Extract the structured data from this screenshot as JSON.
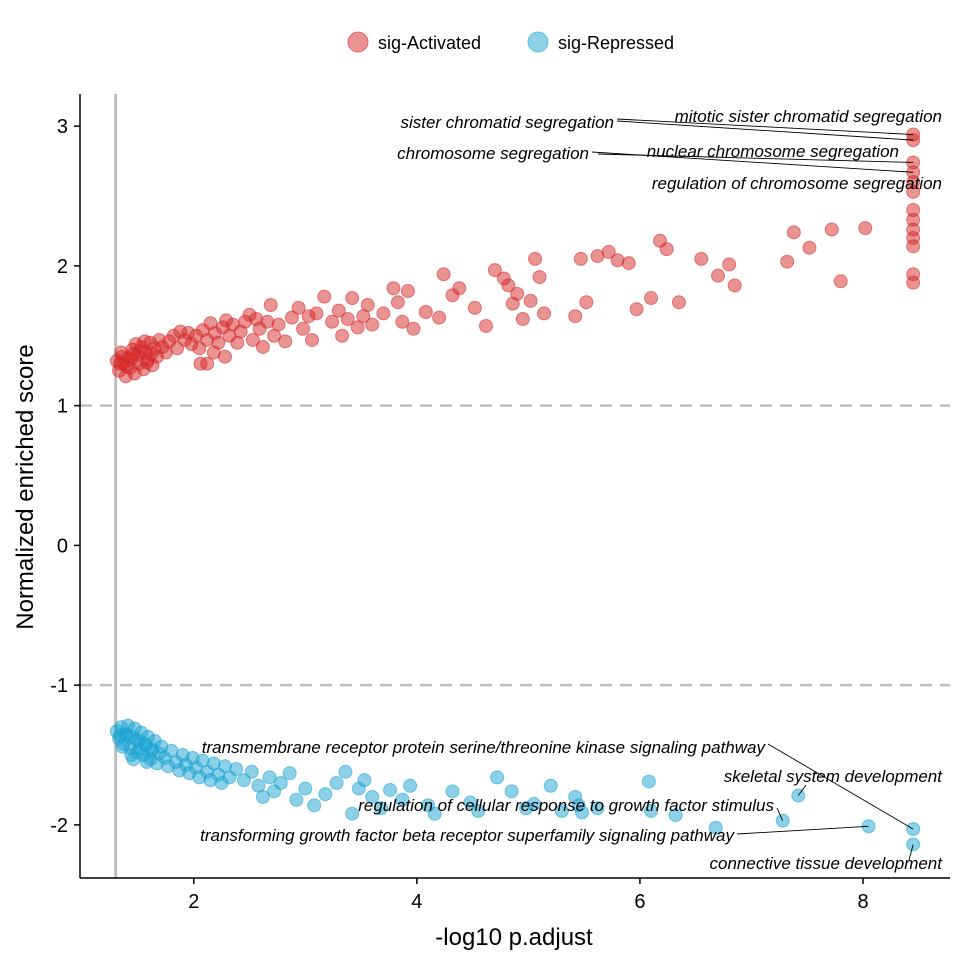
{
  "chart_data": {
    "type": "scatter",
    "title": "",
    "xlabel": "-log10 p.adjust",
    "ylabel": "Normalized enriched score",
    "xlim": [
      0.98,
      8.78
    ],
    "ylim": [
      -2.38,
      3.23
    ],
    "xticks": [
      2,
      4,
      6,
      8
    ],
    "yticks": [
      -2,
      -1,
      0,
      1,
      2,
      3
    ],
    "grid": false,
    "legend_position": "top",
    "reference_lines": {
      "vertical_solid_x": 1.3,
      "horizontal_dashed_y": [
        1,
        -1
      ]
    },
    "colors": {
      "sig-Activated": "#d62728",
      "sig-Repressed": "#1aa3d1",
      "reference": "#bfbfbf"
    },
    "series": [
      {
        "name": "sig-Activated",
        "points": [
          [
            1.31,
            1.32
          ],
          [
            1.33,
            1.25
          ],
          [
            1.35,
            1.38
          ],
          [
            1.37,
            1.3
          ],
          [
            1.39,
            1.21
          ],
          [
            1.41,
            1.34
          ],
          [
            1.43,
            1.27
          ],
          [
            1.45,
            1.4
          ],
          [
            1.47,
            1.23
          ],
          [
            1.49,
            1.36
          ],
          [
            1.51,
            1.3
          ],
          [
            1.53,
            1.42
          ],
          [
            1.55,
            1.26
          ],
          [
            1.57,
            1.38
          ],
          [
            1.59,
            1.33
          ],
          [
            1.61,
            1.45
          ],
          [
            1.63,
            1.29
          ],
          [
            1.65,
            1.41
          ],
          [
            1.67,
            1.35
          ],
          [
            1.69,
            1.47
          ],
          [
            1.36,
            1.35
          ],
          [
            1.44,
            1.33
          ],
          [
            1.52,
            1.39
          ],
          [
            1.58,
            1.31
          ],
          [
            1.48,
            1.44
          ],
          [
            1.4,
            1.28
          ],
          [
            1.56,
            1.46
          ],
          [
            1.62,
            1.37
          ],
          [
            1.34,
            1.3
          ],
          [
            1.46,
            1.37
          ],
          [
            1.72,
            1.42
          ],
          [
            1.75,
            1.38
          ],
          [
            1.78,
            1.46
          ],
          [
            1.82,
            1.5
          ],
          [
            1.85,
            1.41
          ],
          [
            1.88,
            1.53
          ],
          [
            1.92,
            1.47
          ],
          [
            1.95,
            1.52
          ],
          [
            1.98,
            1.44
          ],
          [
            2.02,
            1.5
          ],
          [
            2.05,
            1.41
          ],
          [
            2.08,
            1.54
          ],
          [
            2.12,
            1.47
          ],
          [
            2.15,
            1.59
          ],
          [
            2.19,
            1.52
          ],
          [
            2.22,
            1.45
          ],
          [
            2.26,
            1.56
          ],
          [
            2.29,
            1.61
          ],
          [
            2.32,
            1.5
          ],
          [
            2.35,
            1.58
          ],
          [
            2.06,
            1.3
          ],
          [
            2.12,
            1.3
          ],
          [
            2.18,
            1.38
          ],
          [
            2.28,
            1.35
          ],
          [
            2.39,
            1.45
          ],
          [
            2.42,
            1.53
          ],
          [
            2.46,
            1.6
          ],
          [
            2.5,
            1.65
          ],
          [
            2.53,
            1.47
          ],
          [
            2.56,
            1.62
          ],
          [
            2.59,
            1.55
          ],
          [
            2.62,
            1.42
          ],
          [
            2.66,
            1.6
          ],
          [
            2.69,
            1.72
          ],
          [
            2.72,
            1.5
          ],
          [
            2.76,
            1.58
          ],
          [
            2.82,
            1.46
          ],
          [
            2.88,
            1.63
          ],
          [
            2.94,
            1.7
          ],
          [
            2.98,
            1.55
          ],
          [
            3.03,
            1.64
          ],
          [
            3.06,
            1.47
          ],
          [
            3.1,
            1.66
          ],
          [
            3.17,
            1.78
          ],
          [
            3.24,
            1.6
          ],
          [
            3.3,
            1.68
          ],
          [
            3.33,
            1.5
          ],
          [
            3.38,
            1.62
          ],
          [
            3.42,
            1.77
          ],
          [
            3.47,
            1.56
          ],
          [
            3.52,
            1.64
          ],
          [
            3.56,
            1.72
          ],
          [
            3.6,
            1.58
          ],
          [
            3.7,
            1.66
          ],
          [
            3.79,
            1.84
          ],
          [
            3.83,
            1.74
          ],
          [
            3.87,
            1.6
          ],
          [
            3.92,
            1.82
          ],
          [
            3.97,
            1.55
          ],
          [
            4.08,
            1.67
          ],
          [
            4.2,
            1.63
          ],
          [
            4.24,
            1.94
          ],
          [
            4.32,
            1.79
          ],
          [
            4.38,
            1.84
          ],
          [
            4.52,
            1.7
          ],
          [
            4.62,
            1.57
          ],
          [
            4.7,
            1.97
          ],
          [
            4.78,
            1.91
          ],
          [
            4.82,
            1.86
          ],
          [
            4.86,
            1.73
          ],
          [
            4.9,
            1.8
          ],
          [
            4.95,
            1.62
          ],
          [
            5.02,
            1.75
          ],
          [
            5.06,
            2.05
          ],
          [
            5.1,
            1.92
          ],
          [
            5.14,
            1.66
          ],
          [
            5.42,
            1.64
          ],
          [
            5.47,
            2.05
          ],
          [
            5.52,
            1.74
          ],
          [
            5.62,
            2.07
          ],
          [
            5.72,
            2.1
          ],
          [
            5.8,
            2.04
          ],
          [
            5.9,
            2.02
          ],
          [
            5.97,
            1.69
          ],
          [
            6.1,
            1.77
          ],
          [
            6.18,
            2.18
          ],
          [
            6.24,
            2.12
          ],
          [
            6.35,
            1.74
          ],
          [
            6.55,
            2.05
          ],
          [
            6.7,
            1.93
          ],
          [
            6.8,
            2.01
          ],
          [
            6.85,
            1.86
          ],
          [
            7.32,
            2.03
          ],
          [
            7.38,
            2.24
          ],
          [
            7.52,
            2.13
          ],
          [
            7.72,
            2.26
          ],
          [
            7.8,
            1.89
          ],
          [
            8.02,
            2.27
          ],
          [
            8.45,
            2.94
          ],
          [
            8.45,
            2.9
          ],
          [
            8.45,
            2.74
          ],
          [
            8.45,
            2.67
          ],
          [
            8.45,
            2.6
          ],
          [
            8.45,
            2.53
          ],
          [
            8.45,
            2.4
          ],
          [
            8.45,
            2.33
          ],
          [
            8.45,
            2.26
          ],
          [
            8.45,
            2.2
          ],
          [
            8.45,
            2.14
          ],
          [
            8.45,
            1.94
          ],
          [
            8.45,
            1.88
          ]
        ]
      },
      {
        "name": "sig-Repressed",
        "points": [
          [
            1.31,
            -1.33
          ],
          [
            1.33,
            -1.38
          ],
          [
            1.35,
            -1.3
          ],
          [
            1.37,
            -1.42
          ],
          [
            1.39,
            -1.35
          ],
          [
            1.41,
            -1.29
          ],
          [
            1.43,
            -1.45
          ],
          [
            1.45,
            -1.37
          ],
          [
            1.47,
            -1.31
          ],
          [
            1.49,
            -1.48
          ],
          [
            1.51,
            -1.4
          ],
          [
            1.53,
            -1.34
          ],
          [
            1.55,
            -1.5
          ],
          [
            1.57,
            -1.43
          ],
          [
            1.59,
            -1.37
          ],
          [
            1.61,
            -1.53
          ],
          [
            1.63,
            -1.46
          ],
          [
            1.65,
            -1.4
          ],
          [
            1.67,
            -1.56
          ],
          [
            1.69,
            -1.49
          ],
          [
            1.36,
            -1.44
          ],
          [
            1.44,
            -1.5
          ],
          [
            1.52,
            -1.46
          ],
          [
            1.58,
            -1.55
          ],
          [
            1.48,
            -1.39
          ],
          [
            1.4,
            -1.36
          ],
          [
            1.56,
            -1.42
          ],
          [
            1.62,
            -1.47
          ],
          [
            1.34,
            -1.36
          ],
          [
            1.46,
            -1.53
          ],
          [
            1.71,
            -1.44
          ],
          [
            1.74,
            -1.52
          ],
          [
            1.77,
            -1.58
          ],
          [
            1.8,
            -1.47
          ],
          [
            1.84,
            -1.55
          ],
          [
            1.87,
            -1.61
          ],
          [
            1.9,
            -1.5
          ],
          [
            1.93,
            -1.57
          ],
          [
            1.96,
            -1.63
          ],
          [
            1.99,
            -1.52
          ],
          [
            2.02,
            -1.59
          ],
          [
            2.05,
            -1.66
          ],
          [
            2.08,
            -1.54
          ],
          [
            2.12,
            -1.62
          ],
          [
            2.15,
            -1.68
          ],
          [
            2.18,
            -1.56
          ],
          [
            2.22,
            -1.64
          ],
          [
            2.25,
            -1.7
          ],
          [
            2.28,
            -1.58
          ],
          [
            2.32,
            -1.66
          ],
          [
            2.38,
            -1.6
          ],
          [
            2.45,
            -1.68
          ],
          [
            2.52,
            -1.62
          ],
          [
            2.58,
            -1.72
          ],
          [
            2.62,
            -1.8
          ],
          [
            2.68,
            -1.66
          ],
          [
            2.72,
            -1.76
          ],
          [
            2.78,
            -1.7
          ],
          [
            2.86,
            -1.63
          ],
          [
            2.92,
            -1.82
          ],
          [
            3.0,
            -1.74
          ],
          [
            3.08,
            -1.86
          ],
          [
            3.18,
            -1.78
          ],
          [
            3.28,
            -1.7
          ],
          [
            3.36,
            -1.62
          ],
          [
            3.42,
            -1.92
          ],
          [
            3.48,
            -1.74
          ],
          [
            3.53,
            -1.68
          ],
          [
            3.6,
            -1.8
          ],
          [
            3.68,
            -1.88
          ],
          [
            3.76,
            -1.75
          ],
          [
            3.87,
            -1.82
          ],
          [
            3.94,
            -1.72
          ],
          [
            4.1,
            -1.86
          ],
          [
            4.16,
            -1.92
          ],
          [
            4.32,
            -1.76
          ],
          [
            4.48,
            -1.84
          ],
          [
            4.55,
            -1.9
          ],
          [
            4.72,
            -1.66
          ],
          [
            4.85,
            -1.76
          ],
          [
            4.98,
            -1.88
          ],
          [
            5.05,
            -1.85
          ],
          [
            5.2,
            -1.72
          ],
          [
            5.3,
            -1.9
          ],
          [
            5.42,
            -1.8
          ],
          [
            5.45,
            -1.86
          ],
          [
            5.48,
            -1.91
          ],
          [
            5.62,
            -1.88
          ],
          [
            6.08,
            -1.69
          ],
          [
            6.1,
            -1.9
          ],
          [
            6.32,
            -1.93
          ],
          [
            6.68,
            -2.02
          ],
          [
            7.28,
            -1.97
          ],
          [
            7.42,
            -1.79
          ],
          [
            8.05,
            -2.01
          ],
          [
            8.45,
            -2.03
          ],
          [
            8.45,
            -2.14
          ]
        ]
      }
    ],
    "annotations": [
      {
        "text": "mitotic sister chromatid segregation",
        "point": [
          8.45,
          2.94
        ]
      },
      {
        "text": "sister chromatid segregation",
        "point": [
          8.45,
          2.9
        ]
      },
      {
        "text": "nuclear chromosome segregation",
        "point": [
          8.45,
          2.74
        ]
      },
      {
        "text": "chromosome segregation",
        "point": [
          8.45,
          2.67
        ]
      },
      {
        "text": "regulation of chromosome segregation",
        "point": [
          8.45,
          2.6
        ]
      },
      {
        "text": "transmembrane receptor protein serine/threonine kinase signaling pathway",
        "point": [
          8.45,
          -2.03
        ]
      },
      {
        "text": "skeletal system development",
        "point": [
          7.42,
          -1.79
        ]
      },
      {
        "text": "regulation of cellular response to growth factor stimulus",
        "point": [
          7.28,
          -1.97
        ]
      },
      {
        "text": "transforming growth factor beta receptor superfamily signaling pathway",
        "point": [
          8.05,
          -2.01
        ]
      },
      {
        "text": "connective tissue development",
        "point": [
          8.45,
          -2.14
        ]
      }
    ]
  }
}
